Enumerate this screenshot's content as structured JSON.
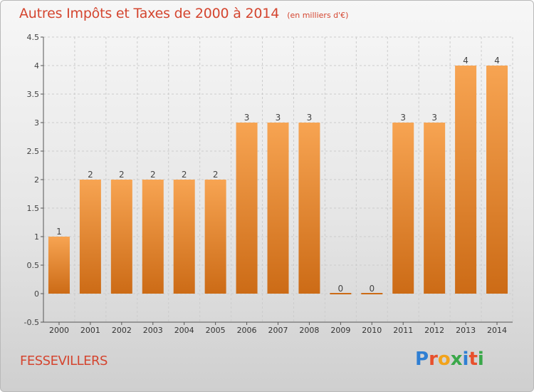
{
  "header": {
    "title": "Autres Impôts et Taxes de 2000 à 2014",
    "unit": "(en milliers d'€)"
  },
  "commune": "FESSEVILLERS",
  "logo": {
    "text": "Proxiti",
    "colors": [
      "#2f7fd3",
      "#e8502c",
      "#f2a31b",
      "#3aa84a",
      "#2f7fd3",
      "#e8502c",
      "#3aa84a"
    ]
  },
  "colors": {
    "bar_light": "#f7a452",
    "bar_dark": "#cc6b16",
    "title": "#d4452f",
    "grid": "#cccccc"
  },
  "chart_data": {
    "type": "bar",
    "title": "Autres Impôts et Taxes de 2000 à 2014",
    "subtitle": "(en milliers d'€)",
    "categories": [
      "2000",
      "2001",
      "2002",
      "2003",
      "2004",
      "2005",
      "2006",
      "2007",
      "2008",
      "2009",
      "2010",
      "2011",
      "2012",
      "2013",
      "2014"
    ],
    "values": [
      1,
      2,
      2,
      2,
      2,
      2,
      3,
      3,
      3,
      0,
      0,
      3,
      3,
      4,
      4
    ],
    "data_labels": [
      "1",
      "2",
      "2",
      "2",
      "2",
      "2",
      "3",
      "3",
      "3",
      "0",
      "0",
      "3",
      "3",
      "4",
      "4"
    ],
    "yticks": [
      -0.5,
      0,
      0.5,
      1,
      1.5,
      2,
      2.5,
      3,
      3.5,
      4,
      4.5
    ],
    "ytick_labels": [
      "-0.5",
      "0",
      "0.5",
      "1",
      "1.5",
      "2",
      "2.5",
      "3",
      "3.5",
      "4",
      "4.5"
    ],
    "ylim": [
      -0.5,
      4.5
    ],
    "xlabel": "",
    "ylabel": "",
    "grid": true
  }
}
